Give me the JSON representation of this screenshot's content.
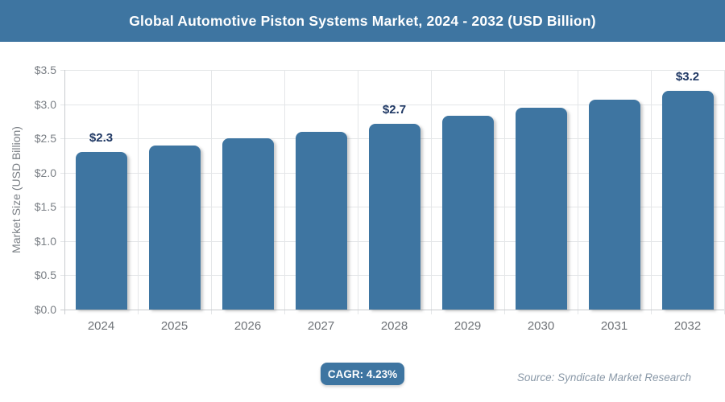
{
  "header": {
    "title": "Global Automotive Piston Systems Market, 2024 - 2032 (USD Billion)",
    "bg_color": "#3E75A1",
    "text_color": "#FFFFFF"
  },
  "chart_data": {
    "type": "bar",
    "title": "Global Automotive Piston Systems Market, 2024 - 2032 (USD Billion)",
    "categories": [
      "2024",
      "2025",
      "2026",
      "2027",
      "2028",
      "2029",
      "2030",
      "2031",
      "2032"
    ],
    "values": [
      2.3,
      2.4,
      2.5,
      2.6,
      2.71,
      2.83,
      2.95,
      3.07,
      3.2
    ],
    "data_labels": [
      {
        "index": 0,
        "text": "$2.3"
      },
      {
        "index": 4,
        "text": "$2.7"
      },
      {
        "index": 8,
        "text": "$3.2"
      }
    ],
    "xlabel": "",
    "ylabel": "Market Size (USD Billion)",
    "ylim": [
      0,
      3.5
    ],
    "ytick_step": 0.5,
    "ytick_prefix": "$",
    "ytick_decimals": 1,
    "grid": true,
    "legend": "none",
    "bar_color": "#3E75A1",
    "value_label_color": "#1F3864"
  },
  "footer": {
    "cagr_badge": "CAGR: 4.23%",
    "source": "Source: Syndicate Market Research"
  }
}
